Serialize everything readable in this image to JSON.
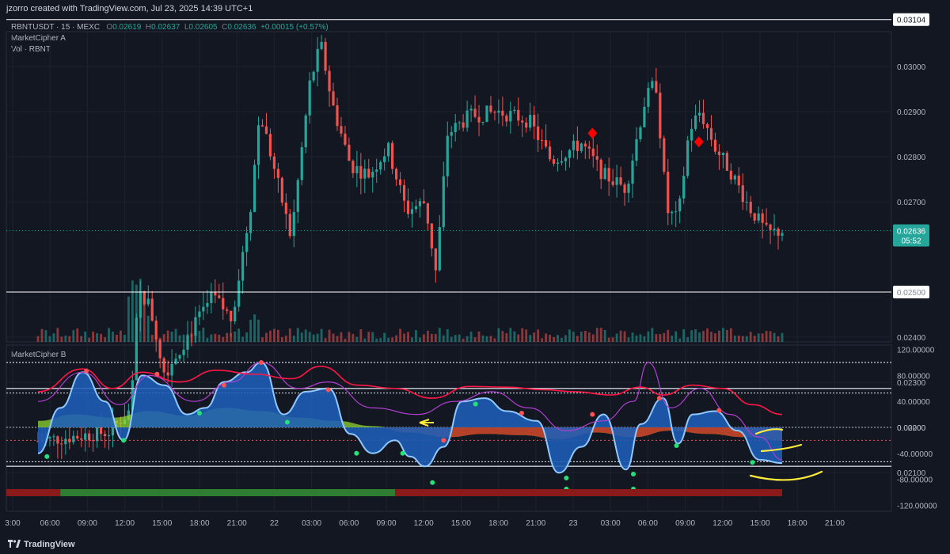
{
  "header": {
    "credit": "jzorro created with TradingView.com, Jul 23, 2025 14:39 UTC+1",
    "symbol": "RBNTUSDT · 15 · MEXC",
    "open_k": "O",
    "open_v": "0.02619",
    "high_k": "H",
    "high_v": "0.02637",
    "low_k": "L",
    "low_v": "0.02605",
    "close_k": "C",
    "close_v": "0.02636",
    "change": "+0.00015 (+0.57%)",
    "indicator_a": "MarketCipher A",
    "indicator_vol": "Vol · RBNT",
    "indicator_b": "MarketCipher B"
  },
  "footer": {
    "brand": "TradingView"
  },
  "colors": {
    "up": "#26a69a",
    "down": "#ef5350",
    "bg": "#131722",
    "grid": "#1e222d",
    "wave_fill": "#1e5eb8",
    "wave_line": "#8fc9ff",
    "money_flow_pos": "#8fd630",
    "money_flow_neg": "#c62828",
    "rsi_line": "#ff1744",
    "stoch_line": "#b03fcf",
    "diamond": "#ff0000",
    "annotation": "#ffeb3b"
  },
  "chart_data": [
    {
      "type": "candlestick",
      "title": "RBNTUSDT · 15 · MEXC",
      "ylim": [
        0.021,
        0.0315
      ],
      "y_ticks": [
        "0.03000",
        "0.02900",
        "0.02800",
        "0.02700",
        "0.02500",
        "0.02400",
        "0.02300",
        "0.02200",
        "0.02100"
      ],
      "x_ticks": [
        "3:00",
        "06:00",
        "09:00",
        "12:00",
        "15:00",
        "18:00",
        "21:00",
        "22",
        "03:00",
        "06:00",
        "09:00",
        "12:00",
        "15:00",
        "18:00",
        "21:00",
        "23",
        "03:00",
        "06:00",
        "09:00",
        "12:00",
        "15:00",
        "18:00",
        "21:00"
      ],
      "horizontal_lines": [
        {
          "label": "0.03104",
          "value": 0.03104
        },
        {
          "label": "0.02500",
          "value": 0.025
        }
      ],
      "last_price": {
        "label": "0.02636",
        "countdown": "05:52",
        "value": 0.02636
      },
      "price_path": [
        {
          "t": 0,
          "p": 0.0217
        },
        {
          "t": 0.05,
          "p": 0.0218
        },
        {
          "t": 0.095,
          "p": 0.0219
        },
        {
          "t": 0.125,
          "p": 0.0224
        },
        {
          "t": 0.135,
          "p": 0.025
        },
        {
          "t": 0.15,
          "p": 0.0247
        },
        {
          "t": 0.17,
          "p": 0.0232
        },
        {
          "t": 0.2,
          "p": 0.024
        },
        {
          "t": 0.235,
          "p": 0.0249
        },
        {
          "t": 0.26,
          "p": 0.0244
        },
        {
          "t": 0.285,
          "p": 0.0268
        },
        {
          "t": 0.298,
          "p": 0.029
        },
        {
          "t": 0.315,
          "p": 0.0279
        },
        {
          "t": 0.34,
          "p": 0.0262
        },
        {
          "t": 0.365,
          "p": 0.0296
        },
        {
          "t": 0.38,
          "p": 0.0305
        },
        {
          "t": 0.395,
          "p": 0.0292
        },
        {
          "t": 0.42,
          "p": 0.0278
        },
        {
          "t": 0.445,
          "p": 0.0276
        },
        {
          "t": 0.47,
          "p": 0.0282
        },
        {
          "t": 0.495,
          "p": 0.0268
        },
        {
          "t": 0.52,
          "p": 0.027
        },
        {
          "t": 0.535,
          "p": 0.0254
        },
        {
          "t": 0.55,
          "p": 0.0285
        },
        {
          "t": 0.58,
          "p": 0.0289
        },
        {
          "t": 0.62,
          "p": 0.029
        },
        {
          "t": 0.66,
          "p": 0.0288
        },
        {
          "t": 0.69,
          "p": 0.0279
        },
        {
          "t": 0.73,
          "p": 0.0283
        },
        {
          "t": 0.76,
          "p": 0.0276
        },
        {
          "t": 0.79,
          "p": 0.0273
        },
        {
          "t": 0.815,
          "p": 0.0292
        },
        {
          "t": 0.83,
          "p": 0.0297
        },
        {
          "t": 0.845,
          "p": 0.0268
        },
        {
          "t": 0.86,
          "p": 0.0266
        },
        {
          "t": 0.875,
          "p": 0.0286
        },
        {
          "t": 0.89,
          "p": 0.029
        },
        {
          "t": 0.91,
          "p": 0.0282
        },
        {
          "t": 0.93,
          "p": 0.0277
        },
        {
          "t": 0.955,
          "p": 0.0269
        },
        {
          "t": 0.98,
          "p": 0.0263
        },
        {
          "t": 1.0,
          "p": 0.02636
        }
      ],
      "signals": [
        {
          "kind": "sell-diamond",
          "t": 0.745,
          "p": 0.02852
        },
        {
          "kind": "sell-diamond",
          "t": 0.888,
          "p": 0.02833
        }
      ]
    },
    {
      "type": "oscillator",
      "title": "MarketCipher B",
      "ylim": [
        -120,
        120
      ],
      "y_ticks": [
        "120.00000",
        "80.00000",
        "40.00000",
        "0.00000",
        "-40.00000",
        "-80.00000",
        "-120.00000"
      ],
      "levels": [
        100,
        60,
        53,
        0,
        -53,
        -60
      ],
      "wave": [
        {
          "t": 0,
          "v": -40
        },
        {
          "t": 0.03,
          "v": 30
        },
        {
          "t": 0.06,
          "v": 85
        },
        {
          "t": 0.09,
          "v": 40
        },
        {
          "t": 0.115,
          "v": -20
        },
        {
          "t": 0.14,
          "v": 80
        },
        {
          "t": 0.17,
          "v": 65
        },
        {
          "t": 0.2,
          "v": 20
        },
        {
          "t": 0.225,
          "v": 30
        },
        {
          "t": 0.25,
          "v": 70
        },
        {
          "t": 0.28,
          "v": 85
        },
        {
          "t": 0.3,
          "v": 100
        },
        {
          "t": 0.33,
          "v": 20
        },
        {
          "t": 0.36,
          "v": 55
        },
        {
          "t": 0.39,
          "v": 60
        },
        {
          "t": 0.42,
          "v": -10
        },
        {
          "t": 0.45,
          "v": -40
        },
        {
          "t": 0.48,
          "v": -20
        },
        {
          "t": 0.5,
          "v": -45
        },
        {
          "t": 0.52,
          "v": -60
        },
        {
          "t": 0.545,
          "v": -30
        },
        {
          "t": 0.57,
          "v": 40
        },
        {
          "t": 0.6,
          "v": 45
        },
        {
          "t": 0.63,
          "v": 25
        },
        {
          "t": 0.67,
          "v": 10
        },
        {
          "t": 0.7,
          "v": -70
        },
        {
          "t": 0.73,
          "v": -30
        },
        {
          "t": 0.76,
          "v": 20
        },
        {
          "t": 0.79,
          "v": -65
        },
        {
          "t": 0.81,
          "v": 5
        },
        {
          "t": 0.84,
          "v": 45
        },
        {
          "t": 0.86,
          "v": -25
        },
        {
          "t": 0.88,
          "v": 20
        },
        {
          "t": 0.91,
          "v": 25
        },
        {
          "t": 0.94,
          "v": -5
        },
        {
          "t": 0.97,
          "v": -50
        },
        {
          "t": 1.0,
          "v": -55
        }
      ],
      "money_flow": [
        {
          "t": 0,
          "v": 10
        },
        {
          "t": 0.05,
          "v": 20
        },
        {
          "t": 0.1,
          "v": 15
        },
        {
          "t": 0.15,
          "v": 25
        },
        {
          "t": 0.2,
          "v": 18
        },
        {
          "t": 0.25,
          "v": 30
        },
        {
          "t": 0.3,
          "v": 25
        },
        {
          "t": 0.35,
          "v": 15
        },
        {
          "t": 0.4,
          "v": 10
        },
        {
          "t": 0.45,
          "v": 2
        },
        {
          "t": 0.5,
          "v": -8
        },
        {
          "t": 0.55,
          "v": -15
        },
        {
          "t": 0.6,
          "v": -10
        },
        {
          "t": 0.65,
          "v": -12
        },
        {
          "t": 0.7,
          "v": -18
        },
        {
          "t": 0.75,
          "v": -8
        },
        {
          "t": 0.8,
          "v": -15
        },
        {
          "t": 0.85,
          "v": -5
        },
        {
          "t": 0.9,
          "v": -10
        },
        {
          "t": 0.95,
          "v": -15
        },
        {
          "t": 1.0,
          "v": -20
        }
      ],
      "rsi": [
        {
          "t": 0,
          "v": 55
        },
        {
          "t": 0.06,
          "v": 90
        },
        {
          "t": 0.1,
          "v": 60
        },
        {
          "t": 0.14,
          "v": 85
        },
        {
          "t": 0.19,
          "v": 70
        },
        {
          "t": 0.24,
          "v": 88
        },
        {
          "t": 0.29,
          "v": 82
        },
        {
          "t": 0.34,
          "v": 75
        },
        {
          "t": 0.38,
          "v": 94
        },
        {
          "t": 0.43,
          "v": 65
        },
        {
          "t": 0.48,
          "v": 60
        },
        {
          "t": 0.53,
          "v": 45
        },
        {
          "t": 0.58,
          "v": 63
        },
        {
          "t": 0.63,
          "v": 62
        },
        {
          "t": 0.68,
          "v": 58
        },
        {
          "t": 0.72,
          "v": 55
        },
        {
          "t": 0.77,
          "v": 50
        },
        {
          "t": 0.81,
          "v": 62
        },
        {
          "t": 0.84,
          "v": 50
        },
        {
          "t": 0.88,
          "v": 65
        },
        {
          "t": 0.92,
          "v": 60
        },
        {
          "t": 0.96,
          "v": 35
        },
        {
          "t": 1.0,
          "v": 20
        }
      ],
      "stoch": [
        {
          "t": 0,
          "v": 40
        },
        {
          "t": 0.06,
          "v": 85
        },
        {
          "t": 0.11,
          "v": 35
        },
        {
          "t": 0.15,
          "v": 80
        },
        {
          "t": 0.21,
          "v": 40
        },
        {
          "t": 0.26,
          "v": 70
        },
        {
          "t": 0.3,
          "v": 100
        },
        {
          "t": 0.35,
          "v": 60
        },
        {
          "t": 0.39,
          "v": 70
        },
        {
          "t": 0.45,
          "v": 30
        },
        {
          "t": 0.51,
          "v": 20
        },
        {
          "t": 0.56,
          "v": 40
        },
        {
          "t": 0.61,
          "v": 55
        },
        {
          "t": 0.66,
          "v": 30
        },
        {
          "t": 0.71,
          "v": -5
        },
        {
          "t": 0.76,
          "v": 10
        },
        {
          "t": 0.8,
          "v": 40
        },
        {
          "t": 0.82,
          "v": 100
        },
        {
          "t": 0.85,
          "v": 30
        },
        {
          "t": 0.89,
          "v": 60
        },
        {
          "t": 0.93,
          "v": 20
        },
        {
          "t": 0.97,
          "v": -15
        },
        {
          "t": 1.0,
          "v": -50
        }
      ],
      "green_dots": [
        {
          "t": 0.012,
          "v": -45
        },
        {
          "t": 0.115,
          "v": -20
        },
        {
          "t": 0.217,
          "v": 22
        },
        {
          "t": 0.335,
          "v": 8
        },
        {
          "t": 0.428,
          "v": -40
        },
        {
          "t": 0.49,
          "v": -40
        },
        {
          "t": 0.53,
          "v": -85
        },
        {
          "t": 0.588,
          "v": 36
        },
        {
          "t": 0.71,
          "v": -78
        },
        {
          "t": 0.71,
          "v": -95
        },
        {
          "t": 0.8,
          "v": -72
        },
        {
          "t": 0.8,
          "v": -95
        },
        {
          "t": 0.858,
          "v": -28
        },
        {
          "t": 0.96,
          "v": -54
        }
      ],
      "red_dots": [
        {
          "t": 0.065,
          "v": 87
        },
        {
          "t": 0.16,
          "v": 82
        },
        {
          "t": 0.25,
          "v": 65
        },
        {
          "t": 0.3,
          "v": 100
        },
        {
          "t": 0.39,
          "v": 58
        },
        {
          "t": 0.545,
          "v": -20
        },
        {
          "t": 0.65,
          "v": 22
        },
        {
          "t": 0.745,
          "v": 20
        },
        {
          "t": 0.835,
          "v": 45
        },
        {
          "t": 0.915,
          "v": 26
        }
      ],
      "trend_bar": [
        {
          "from": 0,
          "to": 0.03,
          "state": "bearish"
        },
        {
          "from": 0.03,
          "to": 0.48,
          "state": "bullish"
        },
        {
          "from": 0.48,
          "to": 1.0,
          "state": "bearish"
        }
      ]
    }
  ]
}
